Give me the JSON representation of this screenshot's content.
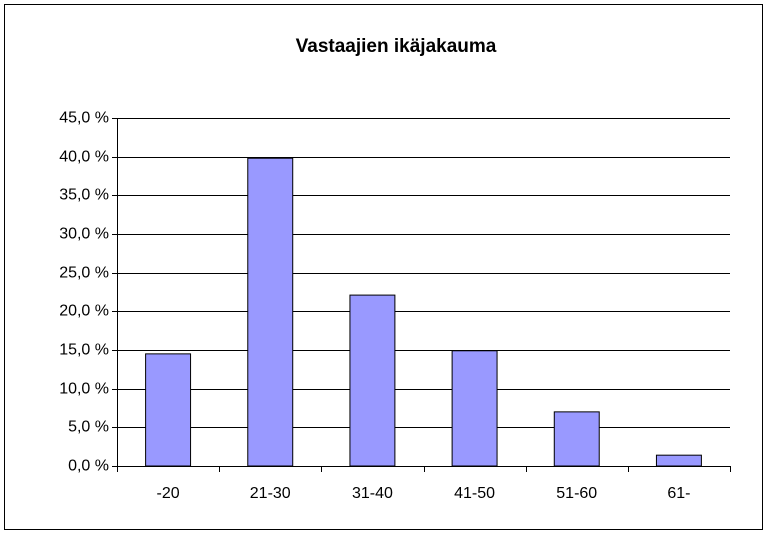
{
  "chart_data": {
    "type": "bar",
    "title": "Vastaajien ikäjakauma",
    "categories": [
      "-20",
      "21-30",
      "31-40",
      "41-50",
      "51-60",
      "61-"
    ],
    "values": [
      14.5,
      39.8,
      22.1,
      14.9,
      7.0,
      1.4
    ],
    "color": "#9999ff",
    "ylim": [
      0,
      45
    ],
    "yticks": [
      {
        "value": 0,
        "label": "0,0 %"
      },
      {
        "value": 5,
        "label": "5,0 %"
      },
      {
        "value": 10,
        "label": "10,0 %"
      },
      {
        "value": 15,
        "label": "15,0 %"
      },
      {
        "value": 20,
        "label": "20,0 %"
      },
      {
        "value": 25,
        "label": "25,0 %"
      },
      {
        "value": 30,
        "label": "30,0 %"
      },
      {
        "value": 35,
        "label": "35,0 %"
      },
      {
        "value": 40,
        "label": "40,0 %"
      },
      {
        "value": 45,
        "label": "45,0 %"
      }
    ],
    "grid": true
  }
}
